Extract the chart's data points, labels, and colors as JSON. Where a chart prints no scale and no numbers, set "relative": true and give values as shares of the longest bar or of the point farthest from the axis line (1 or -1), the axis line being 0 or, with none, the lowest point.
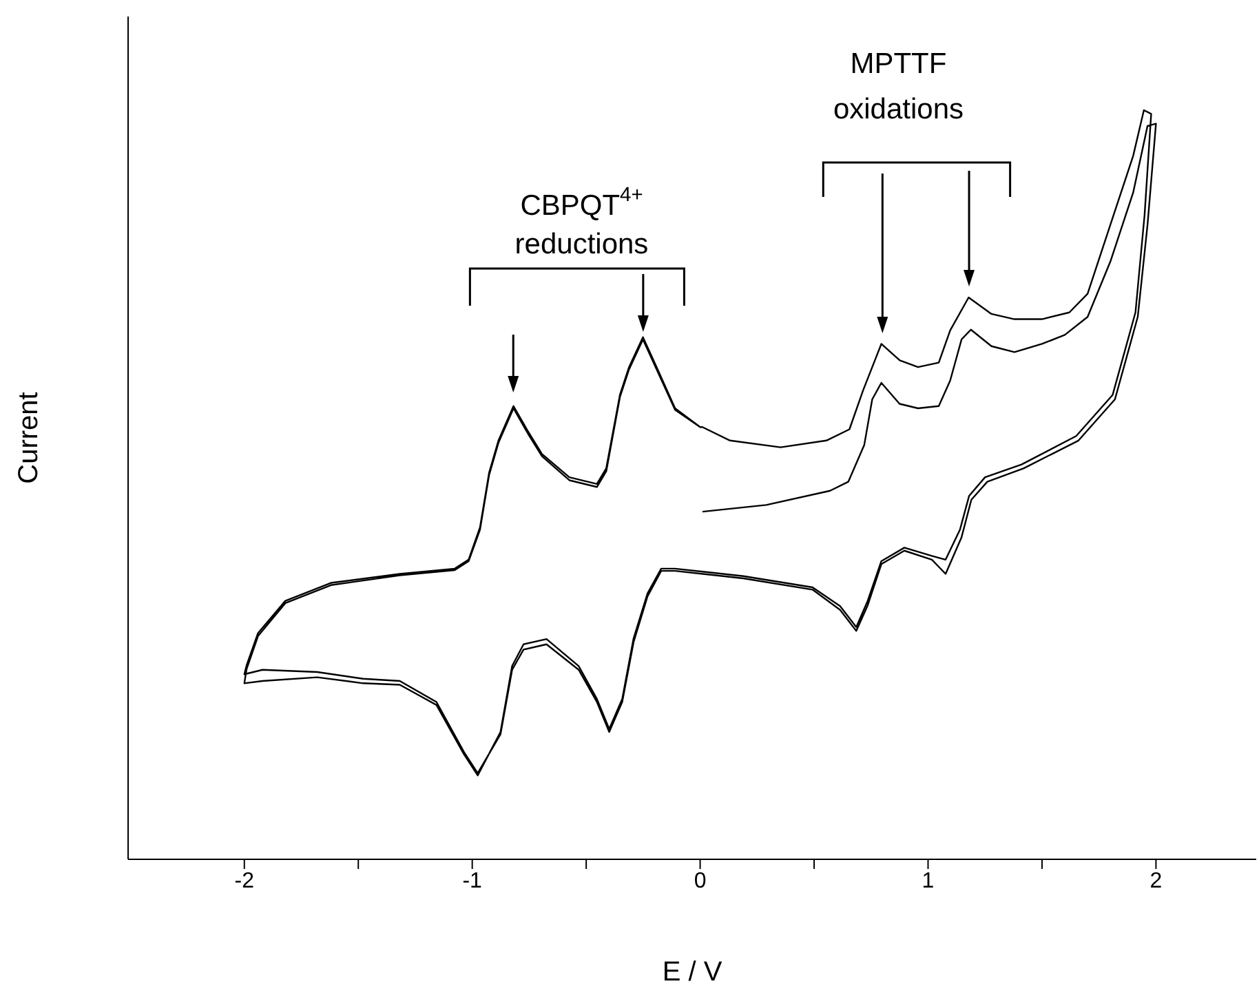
{
  "chart_data": {
    "type": "line",
    "relative": true,
    "xlabel": "E / V",
    "ylabel": "Current",
    "xlim": [
      -2.51,
      2.44
    ],
    "xticks": [
      -2,
      {
        "value": -1.5,
        "label": null
      },
      -1,
      {
        "value": -0.5,
        "label": null
      },
      0,
      {
        "value": 0.5,
        "label": null
      },
      1,
      {
        "value": 1.5,
        "label": null
      },
      2
    ],
    "annotations": [
      "CBPQT$^{4+}$\nreductions",
      "MPTTF\noxidations"
    ],
    "series": [
      {
        "color": "#000000",
        "x": [
          0.01,
          0.29,
          0.57,
          0.65,
          0.72,
          0.755,
          0.795,
          0.875,
          0.956,
          1.047,
          1.097,
          1.147,
          1.188,
          1.278,
          1.379,
          1.5,
          1.6,
          1.7,
          1.8,
          1.9,
          1.963,
          2.0,
          1.963,
          1.92,
          1.82,
          1.66,
          1.42,
          1.26,
          1.19,
          1.147,
          1.077,
          1.017,
          0.896,
          0.795,
          0.735,
          0.685,
          0.614,
          0.493,
          0.19,
          -0.11,
          -0.171,
          -0.231,
          -0.292,
          -0.342,
          -0.399,
          -0.453,
          -0.533,
          -0.674,
          -0.775,
          -0.825,
          -0.876,
          -0.976,
          -1.036,
          -1.157,
          -1.318,
          -1.479,
          -1.68,
          -1.92,
          -2.0,
          -1.99,
          -1.94,
          -1.82,
          -1.62,
          -1.318,
          -1.077,
          -1.016,
          -0.966,
          -0.926,
          -0.885,
          -0.819,
          -0.755,
          -0.694,
          -0.574,
          -0.453,
          -0.412,
          -0.352,
          -0.312,
          -0.251,
          -0.191,
          -0.11,
          0.0,
          0.01,
          0.131,
          0.353,
          0.554,
          0.655,
          0.715,
          0.795,
          0.876,
          0.956,
          1.047,
          1.097,
          1.178,
          1.278,
          1.379,
          1.5,
          1.62,
          1.7,
          1.8,
          1.9,
          1.947,
          1.979,
          1.95,
          1.91,
          1.81,
          1.65,
          1.41,
          1.25,
          1.18,
          1.14,
          1.077,
          1.017,
          0.896,
          0.795,
          0.735,
          0.685,
          0.614,
          0.493,
          0.19,
          -0.11,
          -0.171,
          -0.231,
          -0.292,
          -0.342,
          -0.399,
          -0.453,
          -0.533,
          -0.674,
          -0.775,
          -0.825,
          -0.876,
          -0.976,
          -1.036,
          -1.157,
          -1.318,
          -1.479,
          -1.68,
          -1.92,
          -2.0,
          -1.99,
          -1.94,
          -1.82,
          -1.62,
          -1.318,
          -1.077,
          -1.016,
          -0.966,
          -0.926,
          -0.885,
          -0.819,
          -0.755,
          -0.694,
          -0.574,
          -0.453,
          -0.412,
          -0.352,
          -0.312,
          -0.251,
          -0.191,
          -0.11,
          0.0
        ],
        "values": [
          0.464,
          0.473,
          0.492,
          0.504,
          0.553,
          0.614,
          0.636,
          0.608,
          0.602,
          0.605,
          0.639,
          0.694,
          0.707,
          0.685,
          0.677,
          0.688,
          0.7,
          0.724,
          0.798,
          0.89,
          0.979,
          0.982,
          0.847,
          0.724,
          0.614,
          0.559,
          0.522,
          0.504,
          0.48,
          0.43,
          0.381,
          0.4,
          0.412,
          0.394,
          0.339,
          0.305,
          0.333,
          0.36,
          0.375,
          0.385,
          0.385,
          0.351,
          0.29,
          0.21,
          0.17,
          0.21,
          0.253,
          0.287,
          0.28,
          0.253,
          0.167,
          0.115,
          0.143,
          0.21,
          0.238,
          0.241,
          0.25,
          0.253,
          0.247,
          0.259,
          0.302,
          0.345,
          0.369,
          0.381,
          0.388,
          0.4,
          0.443,
          0.516,
          0.559,
          0.605,
          0.571,
          0.541,
          0.51,
          0.501,
          0.522,
          0.62,
          0.657,
          0.697,
          0.657,
          0.602,
          0.577,
          0.577,
          0.559,
          0.55,
          0.559,
          0.574,
          0.626,
          0.688,
          0.666,
          0.657,
          0.663,
          0.706,
          0.75,
          0.728,
          0.721,
          0.721,
          0.73,
          0.755,
          0.847,
          0.939,
          1.0,
          0.995,
          0.86,
          0.73,
          0.62,
          0.565,
          0.527,
          0.51,
          0.485,
          0.44,
          0.4,
          0.405,
          0.416,
          0.398,
          0.345,
          0.31,
          0.338,
          0.363,
          0.378,
          0.388,
          0.388,
          0.355,
          0.295,
          0.214,
          0.174,
          0.214,
          0.258,
          0.294,
          0.287,
          0.258,
          0.17,
          0.112,
          0.14,
          0.206,
          0.233,
          0.235,
          0.243,
          0.238,
          0.235,
          0.254,
          0.298,
          0.342,
          0.366,
          0.379,
          0.386,
          0.398,
          0.44,
          0.513,
          0.556,
          0.602,
          0.568,
          0.538,
          0.506,
          0.497,
          0.518,
          0.617,
          0.654,
          0.694,
          0.654,
          0.6,
          0.577
        ]
      }
    ]
  }
}
